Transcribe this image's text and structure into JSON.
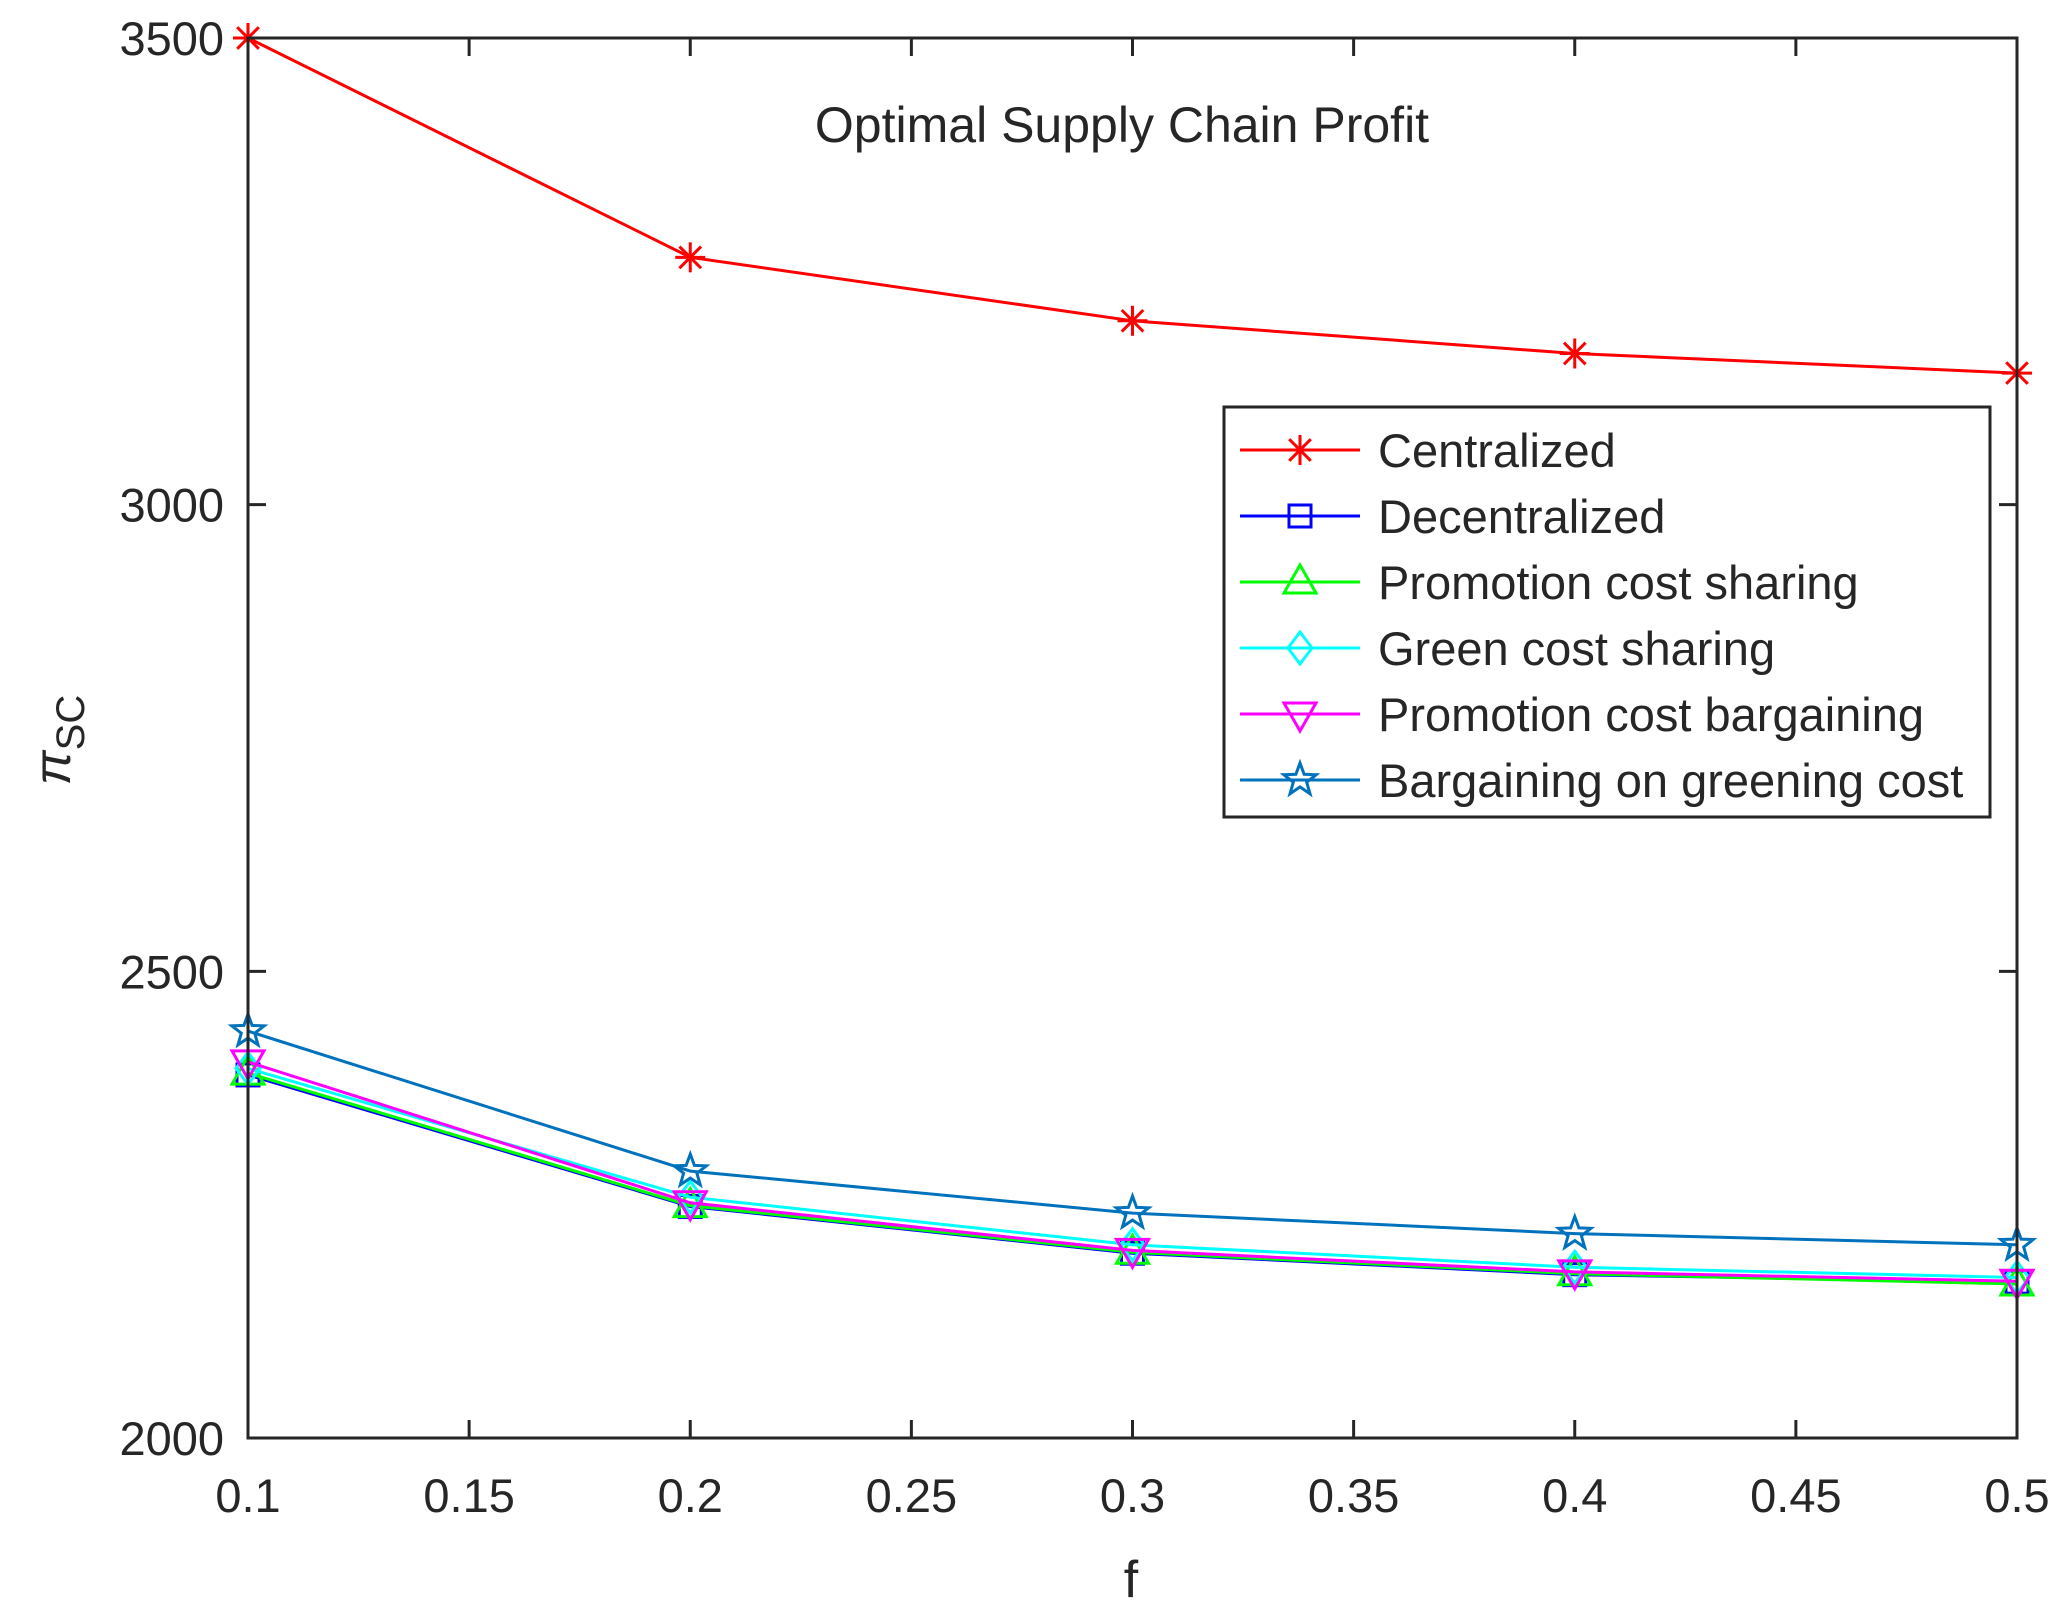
{
  "chart_data": {
    "type": "line",
    "title": "Optimal Supply Chain Profit",
    "xlabel": "f",
    "ylabel": {
      "main": "π",
      "subscript": "SC"
    },
    "x": [
      0.1,
      0.2,
      0.3,
      0.4,
      0.5
    ],
    "xlim": [
      0.1,
      0.5
    ],
    "ylim": [
      2000,
      3500
    ],
    "xticks": [
      0.1,
      0.15,
      0.2,
      0.25,
      0.3,
      0.35,
      0.4,
      0.45,
      0.5
    ],
    "xtick_labels": [
      "0.1",
      "0.15",
      "0.2",
      "0.25",
      "0.3",
      "0.35",
      "0.4",
      "0.45",
      "0.5"
    ],
    "yticks": [
      2000,
      2500,
      3000,
      3500
    ],
    "ytick_labels": [
      "2000",
      "2500",
      "3000",
      "3500"
    ],
    "grid": false,
    "legend_position": "right-middle",
    "series": [
      {
        "name": "Centralized",
        "color": "#ff0000",
        "marker": "asterisk",
        "values": [
          3500,
          3265,
          3197,
          3162,
          3141
        ]
      },
      {
        "name": "Decentralized",
        "color": "#0000ff",
        "marker": "square",
        "values": [
          2389,
          2248,
          2198,
          2175,
          2167
        ]
      },
      {
        "name": "Promotion cost sharing",
        "color": "#00ff00",
        "marker": "triangle-up",
        "values": [
          2391,
          2249,
          2199,
          2176,
          2165
        ]
      },
      {
        "name": "Green cost sharing",
        "color": "#00ffff",
        "marker": "diamond",
        "values": [
          2396,
          2258,
          2207,
          2183,
          2172
        ]
      },
      {
        "name": "Promotion cost bargaining",
        "color": "#ff00ff",
        "marker": "triangle-down",
        "values": [
          2403,
          2252,
          2201,
          2178,
          2168
        ]
      },
      {
        "name": "Bargaining on greening cost",
        "color": "#0072bd",
        "marker": "pentagram",
        "values": [
          2436,
          2286,
          2241,
          2219,
          2207
        ]
      }
    ]
  }
}
